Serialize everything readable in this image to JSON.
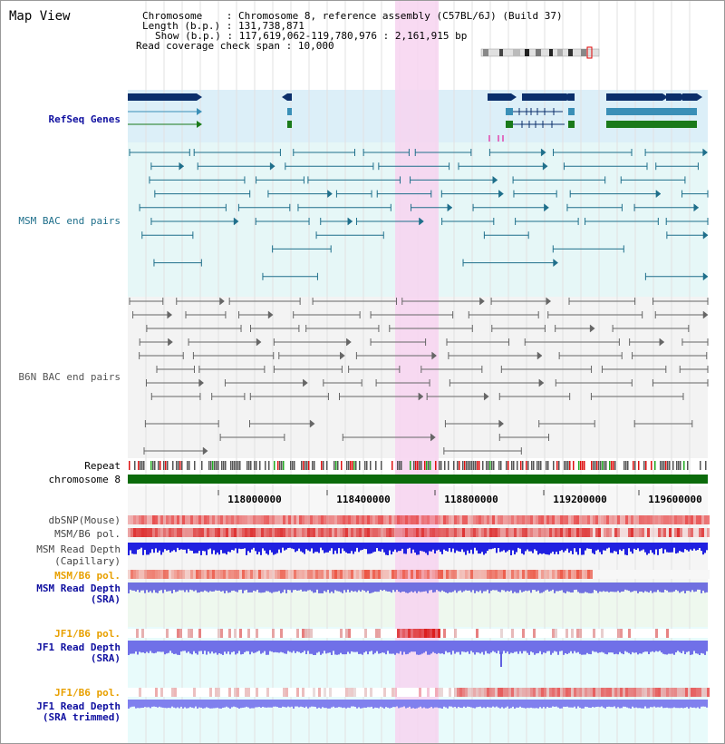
{
  "header": {
    "title": "Map View",
    "chromosome_label": "Chromosome",
    "chromosome_value": "Chromosome 8, reference assembly (C57BL/6J) (Build 37)",
    "length_label": "Length (b.p.)",
    "length_value": "131,738,871",
    "show_label": "Show (b.p.)",
    "show_value": "117,619,062-119,780,976 : 2,161,915 bp",
    "coverage_label": "Read coverage check span",
    "coverage_value": "10,000"
  },
  "tracks": {
    "refseq": "RefSeq Genes",
    "msm_bac": "MSM BAC end pairs",
    "b6n_bac": "B6N BAC end pairs",
    "repeat": "Repeat",
    "chromosome": "chromosome 8",
    "dbsnp": "dbSNP(Mouse)",
    "msm_b6_pol": "MSM/B6 pol.",
    "msm_depth": "MSM Read Depth",
    "msm_depth_sub": "(Capillary)",
    "msm_b6_pol2": "MSM/B6 pol.",
    "msm_depth_sra": "MSM Read Depth",
    "msm_depth_sra_sub": "(SRA)",
    "jf1_pol": "JF1/B6 pol.",
    "jf1_depth": "JF1 Read Depth",
    "jf1_depth_sub": "(SRA)",
    "jf1_pol2": "JF1/B6 pol.",
    "jf1_depth2": "JF1 Read Depth",
    "jf1_depth2_sub": "(SRA trimmed)"
  },
  "axis": {
    "ticks": [
      "118000000",
      "118400000",
      "118800000",
      "119200000",
      "119600000"
    ]
  },
  "colors": {
    "gene_dark": "#0b2f6b",
    "gene_teal": "#3a8fb7",
    "gene_green": "#1a7a1a",
    "msm_bac": "#1f6f8b",
    "b6n_bac": "#666666",
    "highlight": "#f7d3f0",
    "chromosome_bar": "#0b6b0b",
    "label_blue": "#1010a0",
    "label_orange": "#e8a000"
  }
}
